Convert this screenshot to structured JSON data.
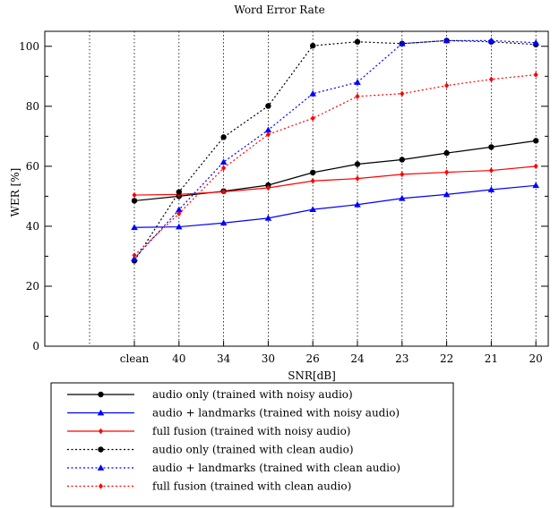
{
  "chart_data": {
    "type": "line",
    "title": "Word Error Rate",
    "xlabel": "SNR[dB]",
    "ylabel": "WER [%]",
    "categories": [
      "clean",
      "40",
      "34",
      "30",
      "26",
      "24",
      "23",
      "22",
      "21",
      "20"
    ],
    "ylim": [
      0,
      105
    ],
    "yticks": [
      0,
      20,
      40,
      60,
      80,
      100
    ],
    "grid": "vertical dotted at each category",
    "legend_position": "bottom-left below axes",
    "series": [
      {
        "name": "audio only (trained with noisy audio)",
        "color": "#000000",
        "style": "solid",
        "marker": "circle",
        "values": [
          48.5,
          50.0,
          51.7,
          53.7,
          57.9,
          60.7,
          62.2,
          64.4,
          66.4,
          68.5
        ]
      },
      {
        "name": "audio + landmarks (trained with noisy audio)",
        "color": "#0000ff",
        "style": "solid",
        "marker": "triangle",
        "values": [
          39.6,
          39.8,
          41.1,
          42.7,
          45.6,
          47.2,
          49.3,
          50.6,
          52.2,
          53.6
        ]
      },
      {
        "name": "full fusion (trained with noisy audio)",
        "color": "#ff0000",
        "style": "solid",
        "marker": "diamond",
        "values": [
          50.4,
          50.6,
          51.5,
          52.8,
          55.1,
          55.9,
          57.3,
          58.0,
          58.6,
          60.0
        ]
      },
      {
        "name": "audio only (trained with clean audio)",
        "color": "#000000",
        "style": "dotted",
        "marker": "circle",
        "values": [
          28.5,
          51.4,
          69.7,
          80.1,
          100.2,
          101.5,
          100.9,
          101.9,
          101.5,
          100.6
        ]
      },
      {
        "name": "audio + landmarks (trained with clean audio)",
        "color": "#0000ff",
        "style": "dotted",
        "marker": "triangle",
        "values": [
          29.2,
          45.5,
          61.4,
          72.1,
          84.2,
          88.0,
          100.9,
          101.9,
          101.9,
          101.2
        ]
      },
      {
        "name": "full fusion (trained with clean audio)",
        "color": "#ff0000",
        "style": "dotted",
        "marker": "diamond",
        "values": [
          30.3,
          44.2,
          59.4,
          70.6,
          76.0,
          83.3,
          84.2,
          86.9,
          89.0,
          90.5
        ]
      }
    ]
  }
}
